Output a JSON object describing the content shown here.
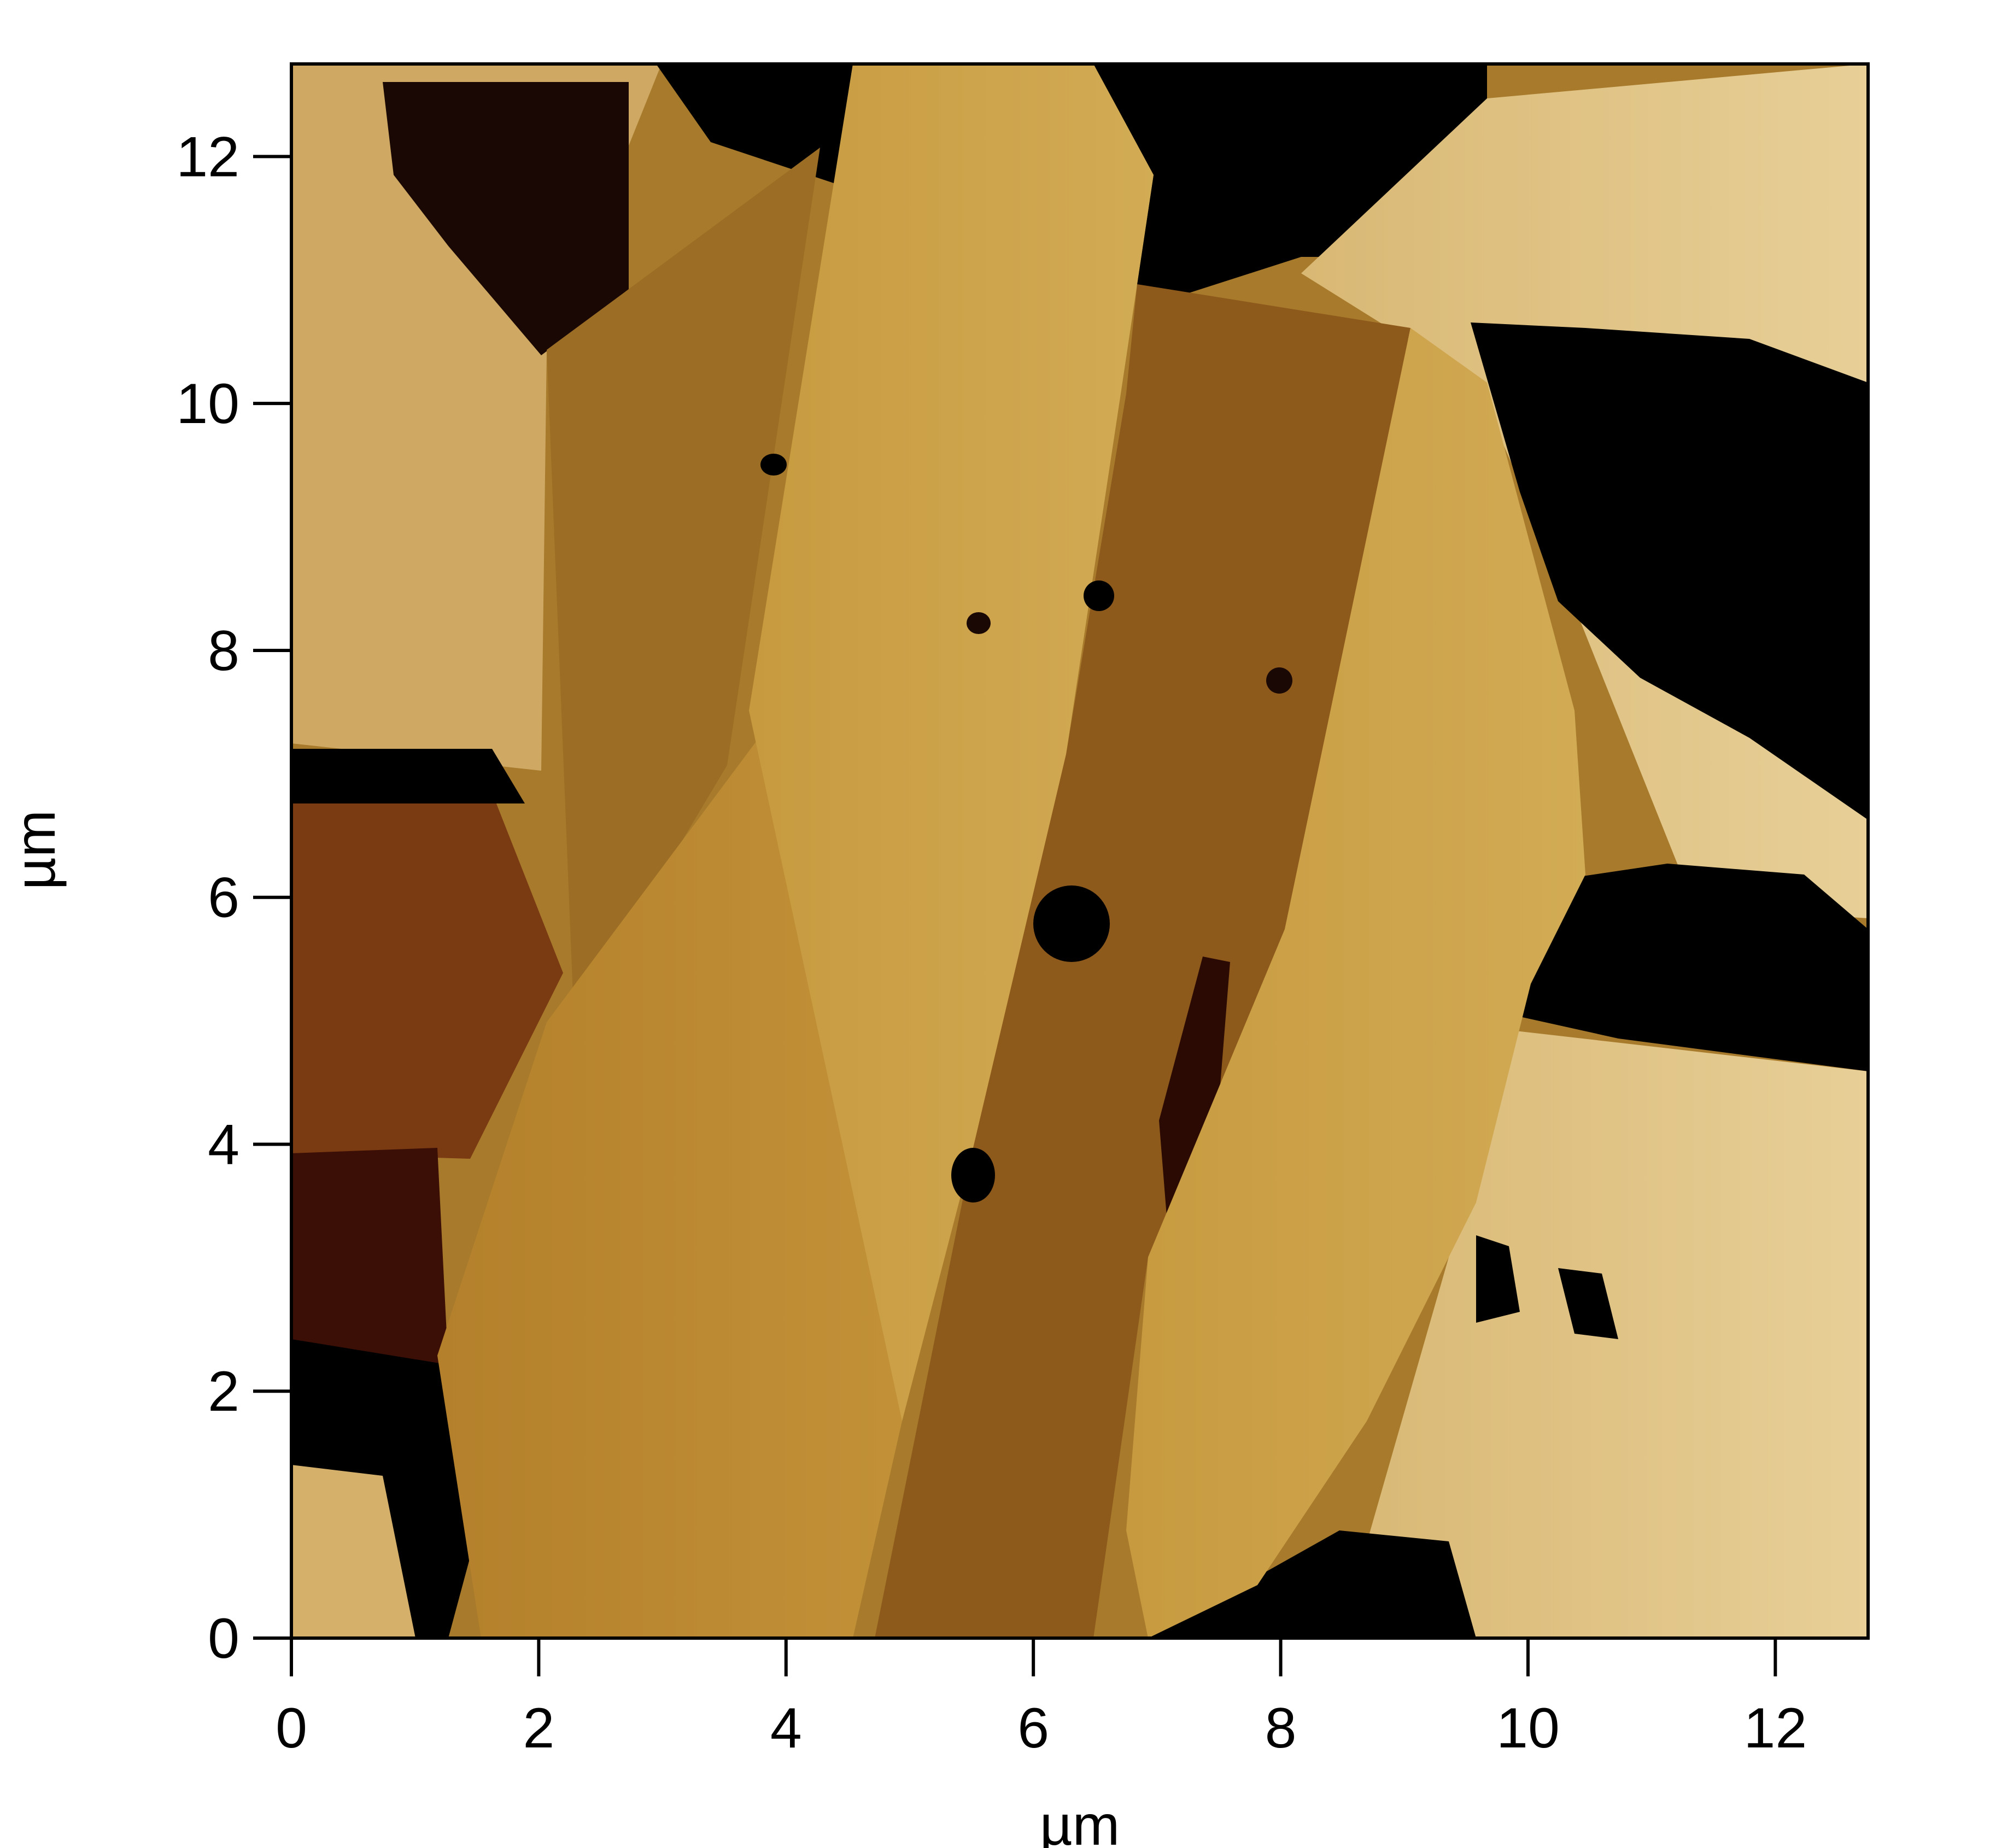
{
  "chart_data": {
    "type": "heatmap",
    "title": "",
    "xlabel": "µm",
    "ylabel": "µm",
    "xlim": [
      0,
      12.75
    ],
    "ylim": [
      0,
      12.75
    ],
    "xticks": [
      0,
      2,
      4,
      6,
      8,
      10,
      12
    ],
    "yticks": [
      0,
      2,
      4,
      6,
      8,
      10,
      12
    ],
    "x_tick_labels": [
      "0",
      "2",
      "4",
      "6",
      "8",
      "10",
      "12"
    ],
    "y_tick_labels": [
      "0",
      "2",
      "4",
      "6",
      "8",
      "10",
      "12"
    ],
    "colormap": [
      "#000000",
      "#3a0d04",
      "#7a3f12",
      "#a8741e",
      "#c69a3c",
      "#dfc98e",
      "#f2e8c8"
    ],
    "grid": false,
    "legend": "none"
  }
}
